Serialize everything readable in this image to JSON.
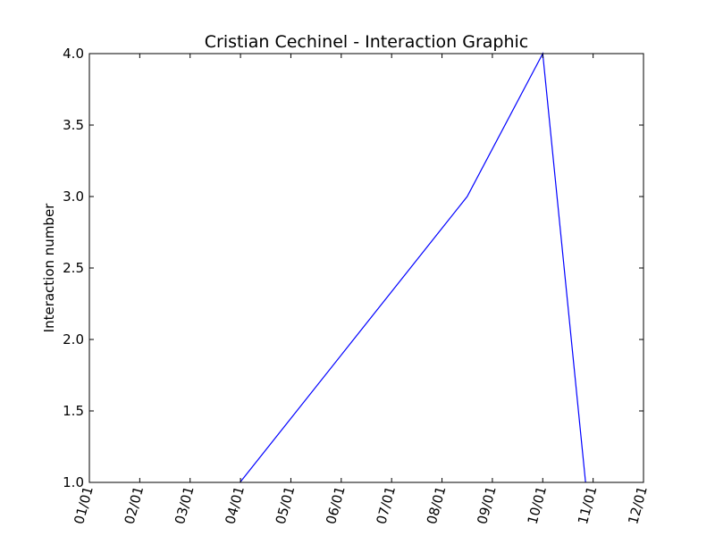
{
  "chart_data": {
    "type": "line",
    "title": "Cristian Cechinel - Interaction Graphic",
    "xlabel": "",
    "ylabel": "Interaction number",
    "x_tick_labels": [
      "01/01",
      "02/01",
      "03/01",
      "04/01",
      "05/01",
      "06/01",
      "07/01",
      "08/01",
      "09/01",
      "10/01",
      "11/01",
      "12/01"
    ],
    "y_tick_labels": [
      "1.0",
      "1.5",
      "2.0",
      "2.5",
      "3.0",
      "3.5",
      "4.0"
    ],
    "y_ticks": [
      1.0,
      1.5,
      2.0,
      2.5,
      3.0,
      3.5,
      4.0
    ],
    "ylim": [
      1.0,
      4.0
    ],
    "x_axis": "month",
    "xlim": [
      0,
      11
    ],
    "grid": false,
    "series": [
      {
        "color": "#0000ff",
        "x": [
          2.99,
          7.5,
          9.0,
          9.85
        ],
        "values": [
          1.0,
          3.0,
          4.0,
          1.0
        ]
      }
    ]
  }
}
